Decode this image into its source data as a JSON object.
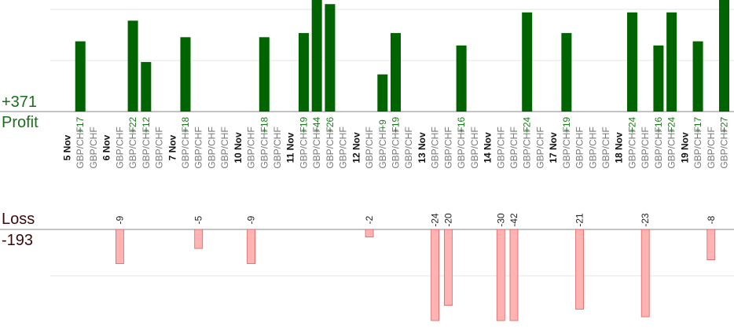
{
  "summary": {
    "profit_total": "+371",
    "profit_label": "Profit",
    "loss_label": "Loss",
    "loss_total": "-193"
  },
  "colors": {
    "profit_bar": "#006400",
    "profit_text": "#1a7a1a",
    "loss_bar": "#ffb3b3",
    "loss_bar_border": "#e06060",
    "loss_text": "#222222",
    "date_text": "#111111",
    "pair_text": "#777777",
    "gridline": "#e6e6e6",
    "baseline": "#888888"
  },
  "chart_data": {
    "type": "bar",
    "pair": "GBP/CHF",
    "profit_scale_max": 27,
    "loss_scale_max": 24,
    "dates": [
      {
        "label": "5 Nov",
        "slot": 0
      },
      {
        "label": "6 Nov",
        "slot": 3
      },
      {
        "label": "7 Nov",
        "slot": 8
      },
      {
        "label": "10 Nov",
        "slot": 13
      },
      {
        "label": "11 Nov",
        "slot": 17
      },
      {
        "label": "12 Nov",
        "slot": 22
      },
      {
        "label": "13 Nov",
        "slot": 27
      },
      {
        "label": "14 Nov",
        "slot": 32
      },
      {
        "label": "17 Nov",
        "slot": 37
      },
      {
        "label": "18 Nov",
        "slot": 42
      },
      {
        "label": "19 Nov",
        "slot": 47
      }
    ],
    "trades": [
      {
        "slot": 1,
        "value": 17
      },
      {
        "slot": 2
      },
      {
        "slot": 4,
        "value": -9
      },
      {
        "slot": 5,
        "value": 22
      },
      {
        "slot": 6,
        "value": 12
      },
      {
        "slot": 7
      },
      {
        "slot": 9,
        "value": 18
      },
      {
        "slot": 10,
        "value": -5
      },
      {
        "slot": 11
      },
      {
        "slot": 12
      },
      {
        "slot": 14,
        "value": -9
      },
      {
        "slot": 15,
        "value": 18
      },
      {
        "slot": 16
      },
      {
        "slot": 18,
        "value": 19
      },
      {
        "slot": 19,
        "value": 44
      },
      {
        "slot": 20,
        "value": 26
      },
      {
        "slot": 21
      },
      {
        "slot": 23,
        "value": -2
      },
      {
        "slot": 24,
        "value": 9
      },
      {
        "slot": 25,
        "value": 19
      },
      {
        "slot": 26
      },
      {
        "slot": 28,
        "value": -24
      },
      {
        "slot": 29,
        "value": -20
      },
      {
        "slot": 30,
        "value": 16
      },
      {
        "slot": 31
      },
      {
        "slot": 33,
        "value": -30
      },
      {
        "slot": 34,
        "value": -42
      },
      {
        "slot": 35,
        "value": 24
      },
      {
        "slot": 36
      },
      {
        "slot": 38,
        "value": 19
      },
      {
        "slot": 39,
        "value": -21
      },
      {
        "slot": 40
      },
      {
        "slot": 41
      },
      {
        "slot": 43,
        "value": 24
      },
      {
        "slot": 44,
        "value": -23
      },
      {
        "slot": 45,
        "value": 16
      },
      {
        "slot": 46,
        "value": 24
      },
      {
        "slot": 48,
        "value": 17
      },
      {
        "slot": 49,
        "value": -8
      },
      {
        "slot": 50,
        "value": 27
      }
    ]
  }
}
